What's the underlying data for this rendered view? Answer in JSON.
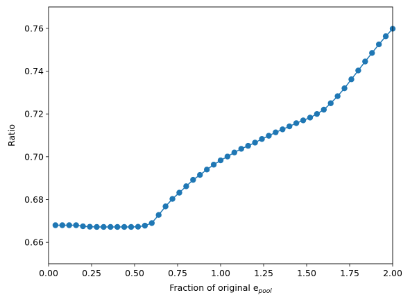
{
  "chart_data": {
    "type": "line",
    "title": "",
    "xlabel": "Fraction of original e",
    "xlabel_subscript": "pool",
    "ylabel": "Ratio",
    "xlim": [
      0.0,
      2.0
    ],
    "ylim": [
      0.65,
      0.77
    ],
    "xticks": [
      0.0,
      0.25,
      0.5,
      0.75,
      1.0,
      1.25,
      1.5,
      1.75,
      2.0
    ],
    "xtick_labels": [
      "0.00",
      "0.25",
      "0.50",
      "0.75",
      "1.00",
      "1.25",
      "1.50",
      "1.75",
      "2.00"
    ],
    "yticks": [
      0.66,
      0.68,
      0.7,
      0.72,
      0.74,
      0.76
    ],
    "ytick_labels": [
      "0.66",
      "0.68",
      "0.70",
      "0.72",
      "0.74",
      "0.76"
    ],
    "grid": false,
    "legend": "none",
    "color": "#1f77b4",
    "marker": "circle",
    "series": [
      {
        "x": [
          0.04,
          0.08,
          0.12,
          0.16,
          0.2,
          0.24,
          0.28,
          0.32,
          0.36,
          0.4,
          0.44,
          0.48,
          0.52,
          0.56,
          0.6,
          0.64,
          0.68,
          0.72,
          0.76,
          0.8,
          0.84,
          0.88,
          0.92,
          0.96,
          1.0,
          1.04,
          1.08,
          1.12,
          1.16,
          1.2,
          1.24,
          1.28,
          1.32,
          1.36,
          1.4,
          1.44,
          1.48,
          1.52,
          1.56,
          1.6,
          1.64,
          1.68,
          1.72,
          1.76,
          1.8,
          1.84,
          1.88,
          1.92,
          1.96,
          2.0
        ],
        "values": [
          0.668,
          0.668,
          0.668,
          0.668,
          0.6675,
          0.6673,
          0.6672,
          0.6672,
          0.6672,
          0.6672,
          0.6672,
          0.6672,
          0.6673,
          0.6678,
          0.669,
          0.6728,
          0.6768,
          0.6803,
          0.6832,
          0.6862,
          0.6892,
          0.6915,
          0.694,
          0.6963,
          0.6983,
          0.7001,
          0.702,
          0.7037,
          0.7051,
          0.7066,
          0.7083,
          0.7098,
          0.7114,
          0.7128,
          0.7142,
          0.7157,
          0.717,
          0.7183,
          0.72,
          0.722,
          0.725,
          0.7283,
          0.732,
          0.7362,
          0.7403,
          0.7445,
          0.7485,
          0.7525,
          0.7563,
          0.7598
        ]
      }
    ]
  }
}
